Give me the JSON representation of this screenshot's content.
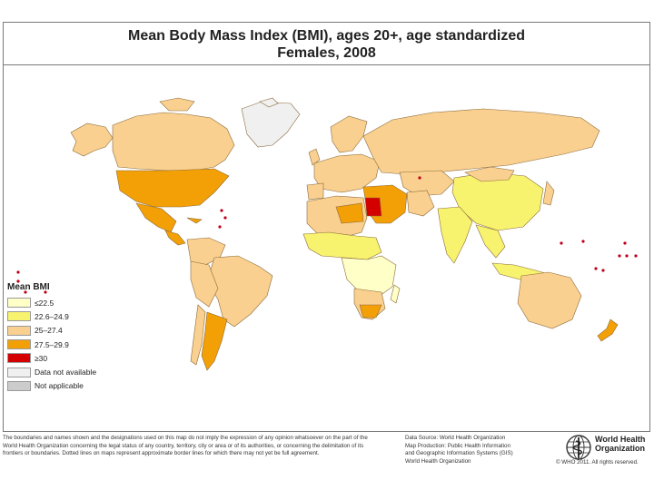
{
  "header": {
    "title_line1": "Mean Body Mass Index (BMI), ages 20+, age standardized",
    "title_line2": "Females, 2008"
  },
  "legend": {
    "title": "Mean BMI",
    "items": [
      {
        "label": "≤22.5",
        "color": "#ffffc8"
      },
      {
        "label": "22.6–24.9",
        "color": "#f7f36e"
      },
      {
        "label": "25–27.4",
        "color": "#f9d08f"
      },
      {
        "label": "27.5–29.9",
        "color": "#f3a006"
      },
      {
        "label": "≥30",
        "color": "#d40000"
      },
      {
        "label": "Data not available",
        "color": "#f0f0f0"
      },
      {
        "label": "Not applicable",
        "color": "#cccccc"
      }
    ]
  },
  "map_colors": {
    "border": "#8c6b3d",
    "ocean": "#ffffff",
    "island_dot": "#c0001a"
  },
  "footer": {
    "disclaimer": "The boundaries and names shown and the designations used on this map do not imply the expression of any opinion whatsoever on the part of the World Health Organization concerning the legal status of any country, territory, city or area or of its authorities, or concerning the delimitation of its frontiers or boundaries. Dotted lines on maps represent approximate border lines for which there may not yet be full agreement.",
    "credits": [
      "Data Source: World Health Organization",
      "Map Production: Public Health Information",
      "and Geographic Information Systems (GIS)",
      "World Health Organization"
    ],
    "org_line1": "World Health",
    "org_line2": "Organization",
    "copyright": "© WHO 2011. All rights reserved."
  }
}
